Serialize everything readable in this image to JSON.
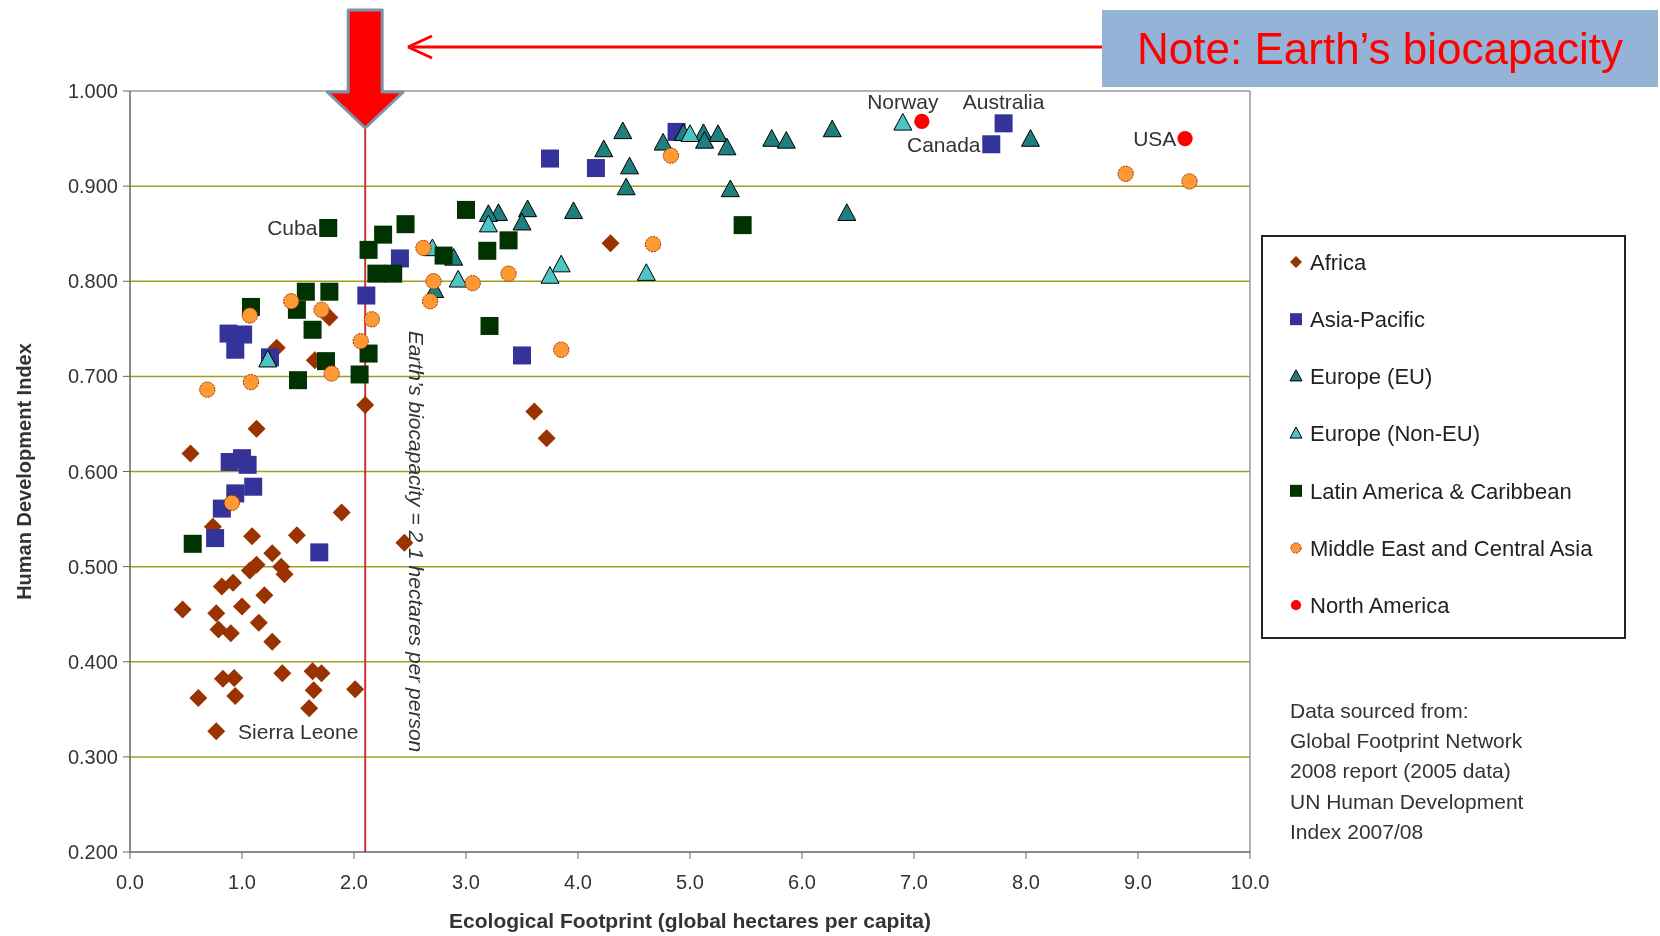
{
  "chart_data": {
    "type": "scatter",
    "xlabel": "Ecological Footprint (global hectares per capita)",
    "ylabel": "Human Development Index",
    "xlim": [
      0,
      10
    ],
    "ylim": [
      0.2,
      1.0
    ],
    "xticks": [
      {
        "value": 0,
        "label": "0.0"
      },
      {
        "value": 1,
        "label": "1.0"
      },
      {
        "value": 2,
        "label": "2.0"
      },
      {
        "value": 3,
        "label": "3.0"
      },
      {
        "value": 4,
        "label": "4.0"
      },
      {
        "value": 5,
        "label": "5.0"
      },
      {
        "value": 6,
        "label": "6.0"
      },
      {
        "value": 7,
        "label": "7.0"
      },
      {
        "value": 8,
        "label": "8.0"
      },
      {
        "value": 9,
        "label": "9.0"
      },
      {
        "value": 10,
        "label": "10.0"
      }
    ],
    "yticks": [
      {
        "value": 0.2,
        "label": "0.200"
      },
      {
        "value": 0.3,
        "label": "0.300"
      },
      {
        "value": 0.4,
        "label": "0.400"
      },
      {
        "value": 0.5,
        "label": "0.500"
      },
      {
        "value": 0.6,
        "label": "0.600"
      },
      {
        "value": 0.7,
        "label": "0.700"
      },
      {
        "value": 0.8,
        "label": "0.800"
      },
      {
        "value": 0.9,
        "label": "0.900"
      },
      {
        "value": 1.0,
        "label": "1.000"
      }
    ],
    "grid": "y",
    "legend": "right",
    "series": [
      {
        "name": "Africa",
        "color": "#993300",
        "marker": "diamond",
        "x": [
          0.54,
          0.74,
          1.09,
          1.49,
          1.89,
          2.45,
          1.27,
          1.13,
          1.07,
          1.35,
          1.38,
          0.82,
          0.92,
          1.2,
          0.47,
          0.77,
          1.0,
          0.79,
          0.9,
          1.15,
          1.27,
          0.83,
          0.93,
          1.36,
          1.63,
          1.71,
          0.61,
          0.94,
          1.64,
          2.01,
          1.6,
          0.77,
          2.1,
          1.13,
          1.31,
          1.65,
          1.78,
          3.61,
          3.72,
          4.29
        ],
        "values": [
          0.619,
          0.542,
          0.532,
          0.533,
          0.557,
          0.525,
          0.514,
          0.502,
          0.496,
          0.5,
          0.492,
          0.479,
          0.483,
          0.47,
          0.455,
          0.451,
          0.458,
          0.434,
          0.43,
          0.441,
          0.421,
          0.382,
          0.383,
          0.388,
          0.39,
          0.388,
          0.362,
          0.364,
          0.37,
          0.371,
          0.351,
          0.327,
          0.67,
          0.645,
          0.73,
          0.717,
          0.762,
          0.663,
          0.635,
          0.84
        ]
      },
      {
        "name": "Asia-Pacific",
        "color": "#333399",
        "marker": "square",
        "x": [
          0.88,
          1.01,
          0.94,
          1.25,
          2.11,
          2.41,
          0.89,
          1.0,
          1.05,
          1.1,
          0.94,
          0.82,
          0.76,
          1.69,
          3.75,
          4.16,
          4.88,
          3.5,
          7.8,
          7.69
        ],
        "values": [
          0.745,
          0.744,
          0.728,
          0.72,
          0.785,
          0.824,
          0.61,
          0.614,
          0.607,
          0.584,
          0.577,
          0.561,
          0.53,
          0.515,
          0.929,
          0.919,
          0.957,
          0.722,
          0.966,
          0.944
        ]
      },
      {
        "name": "Europe (EU)",
        "color": "#1f7f7f",
        "marker": "triangle",
        "x": [
          4.4,
          4.23,
          4.46,
          4.43,
          4.76,
          4.94,
          5.12,
          5.13,
          5.25,
          5.33,
          5.36,
          3.96,
          3.55,
          3.5,
          3.29,
          3.2,
          2.89,
          2.72,
          5.73,
          5.86,
          6.27,
          6.4,
          8.04
        ],
        "values": [
          0.957,
          0.938,
          0.92,
          0.898,
          0.945,
          0.955,
          0.955,
          0.947,
          0.954,
          0.94,
          0.896,
          0.873,
          0.875,
          0.861,
          0.871,
          0.87,
          0.824,
          0.79,
          0.949,
          0.947,
          0.959,
          0.871,
          0.949
        ]
      },
      {
        "name": "Europe (Non-EU)",
        "color": "#4fc4c4",
        "marker": "triangle",
        "x": [
          5.0,
          3.2,
          3.85,
          3.75,
          4.61,
          2.93,
          2.7,
          1.23,
          6.9
        ],
        "values": [
          0.954,
          0.859,
          0.817,
          0.805,
          0.808,
          0.801,
          0.834,
          0.717,
          0.966
        ]
      },
      {
        "name": "Latin America & Caribbean",
        "color": "#003300",
        "marker": "square",
        "x": [
          1.77,
          2.13,
          2.26,
          2.46,
          2.2,
          2.35,
          1.57,
          1.78,
          1.08,
          1.49,
          1.63,
          1.75,
          2.13,
          1.5,
          2.05,
          0.56,
          3.0,
          3.38,
          3.19,
          3.21,
          2.8,
          5.47
        ],
        "values": [
          0.856,
          0.833,
          0.849,
          0.86,
          0.808,
          0.808,
          0.789,
          0.789,
          0.773,
          0.77,
          0.749,
          0.716,
          0.724,
          0.696,
          0.702,
          0.524,
          0.875,
          0.843,
          0.832,
          0.753,
          0.827,
          0.859
        ]
      },
      {
        "name": "Middle East and Central Asia",
        "color": "#ff9933",
        "marker": "circle",
        "x": [
          1.44,
          1.07,
          1.71,
          2.16,
          2.06,
          1.8,
          1.08,
          0.69,
          0.91,
          2.62,
          2.71,
          2.68,
          3.06,
          3.38,
          4.67,
          3.85,
          4.83,
          8.89,
          9.46
        ],
        "values": [
          0.779,
          0.764,
          0.77,
          0.76,
          0.737,
          0.703,
          0.694,
          0.686,
          0.567,
          0.835,
          0.8,
          0.779,
          0.798,
          0.808,
          0.839,
          0.728,
          0.932,
          0.913,
          0.905
        ]
      },
      {
        "name": "North America",
        "color": "#ff0000",
        "marker": "circle",
        "x": [
          7.07,
          9.42
        ],
        "values": [
          0.968,
          0.95
        ]
      }
    ],
    "ref_lines": [
      {
        "axis": "x",
        "value": 2.1,
        "label": "Earth’s biocapacity = 2.1 hectares per person",
        "color": "#cc3333"
      }
    ],
    "annotations": [
      {
        "text": "Cuba",
        "x": 1.77,
        "y": 0.856
      },
      {
        "text": "Sierra Leone",
        "x": 0.77,
        "y": 0.327
      },
      {
        "text": "Norway",
        "x": 6.9,
        "y": 0.966
      },
      {
        "text": "Canada",
        "x": 7.69,
        "y": 0.944
      },
      {
        "text": "Australia",
        "x": 7.8,
        "y": 0.966
      },
      {
        "text": "USA",
        "x": 9.42,
        "y": 0.95
      },
      "Note: Earth’s biocapacity",
      "Data sourced from:\nGlobal Footprint Network\n2008 report (2005 data)\nUN Human Development\nIndex 2007/08"
    ]
  }
}
